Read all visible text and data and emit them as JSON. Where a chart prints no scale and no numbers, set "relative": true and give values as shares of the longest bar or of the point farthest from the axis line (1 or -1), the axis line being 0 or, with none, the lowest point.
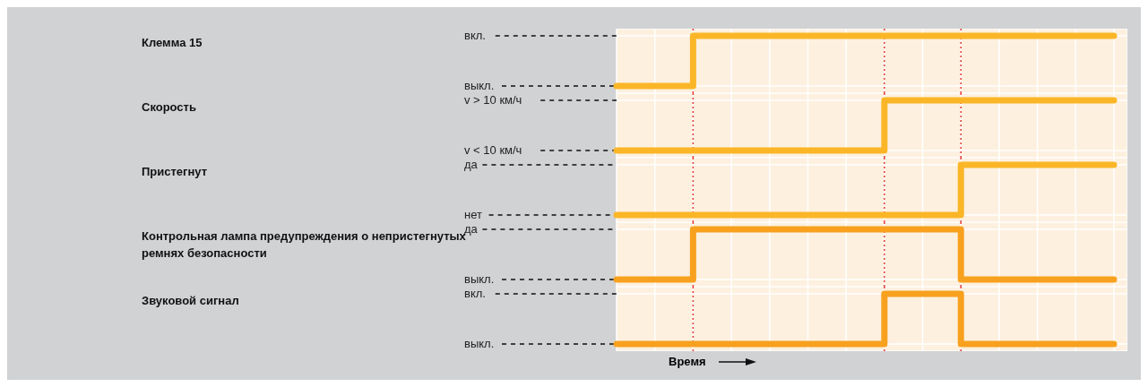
{
  "chart_data": [
    {
      "type": "step",
      "relative": true,
      "ylabel": "Клемма 15",
      "categories": [
        null,
        null,
        null,
        null,
        null,
        null,
        null,
        null,
        null,
        null,
        null,
        null,
        null,
        null
      ],
      "series": [
        {
          "color": "#fbb627",
          "values": [
            0,
            0,
            1,
            1,
            1,
            1,
            1,
            1,
            1,
            1,
            1,
            1,
            1,
            1
          ]
        }
      ],
      "annotations": [
        "выкл.",
        "вкл."
      ],
      "grid": true,
      "line_style": "solid"
    },
    {
      "type": "step",
      "relative": true,
      "ylabel": "Скорость",
      "categories": [
        null,
        null,
        null,
        null,
        null,
        null,
        null,
        null,
        null,
        null,
        null,
        null,
        null,
        null
      ],
      "series": [
        {
          "color": "#fbb627",
          "values": [
            0,
            0,
            0,
            0,
            0,
            0,
            0,
            1,
            1,
            1,
            1,
            1,
            1,
            1
          ]
        }
      ],
      "annotations": [
        "v < 10 км/ч",
        "v > 10 км/ч"
      ],
      "grid": true,
      "line_style": "solid"
    },
    {
      "type": "step",
      "relative": true,
      "ylabel": "Пристегнут",
      "categories": [
        null,
        null,
        null,
        null,
        null,
        null,
        null,
        null,
        null,
        null,
        null,
        null,
        null,
        null
      ],
      "series": [
        {
          "color": "#fbb627",
          "values": [
            0,
            0,
            0,
            0,
            0,
            0,
            0,
            0,
            0,
            1,
            1,
            1,
            1,
            1
          ]
        }
      ],
      "annotations": [
        "нет",
        "да"
      ],
      "grid": true,
      "line_style": "solid"
    },
    {
      "type": "step",
      "relative": true,
      "ylabel": "Контрольная лампа предупреждения о непристегнутых ремнях безопасности",
      "categories": [
        null,
        null,
        null,
        null,
        null,
        null,
        null,
        null,
        null,
        null,
        null,
        null,
        null,
        null
      ],
      "series": [
        {
          "color": "#f7a11e",
          "values": [
            0,
            0,
            1,
            1,
            1,
            1,
            1,
            1,
            1,
            0,
            0,
            0,
            0,
            0
          ]
        }
      ],
      "annotations": [
        "выкл.",
        "да"
      ],
      "grid": true,
      "line_style": "solid"
    },
    {
      "type": "step",
      "relative": true,
      "ylabel": "Звуковой сигнал",
      "xlabel": "Время",
      "categories": [
        null,
        null,
        null,
        null,
        null,
        null,
        null,
        null,
        null,
        null,
        null,
        null,
        null,
        null
      ],
      "series": [
        {
          "color": "#f7a11e",
          "values": [
            0,
            0,
            0,
            0,
            0,
            0,
            0,
            1,
            1,
            0,
            0,
            0,
            0,
            0
          ]
        }
      ],
      "annotations": [
        "выкл.",
        "вкл."
      ],
      "grid": true,
      "line_style": "solid"
    }
  ]
}
